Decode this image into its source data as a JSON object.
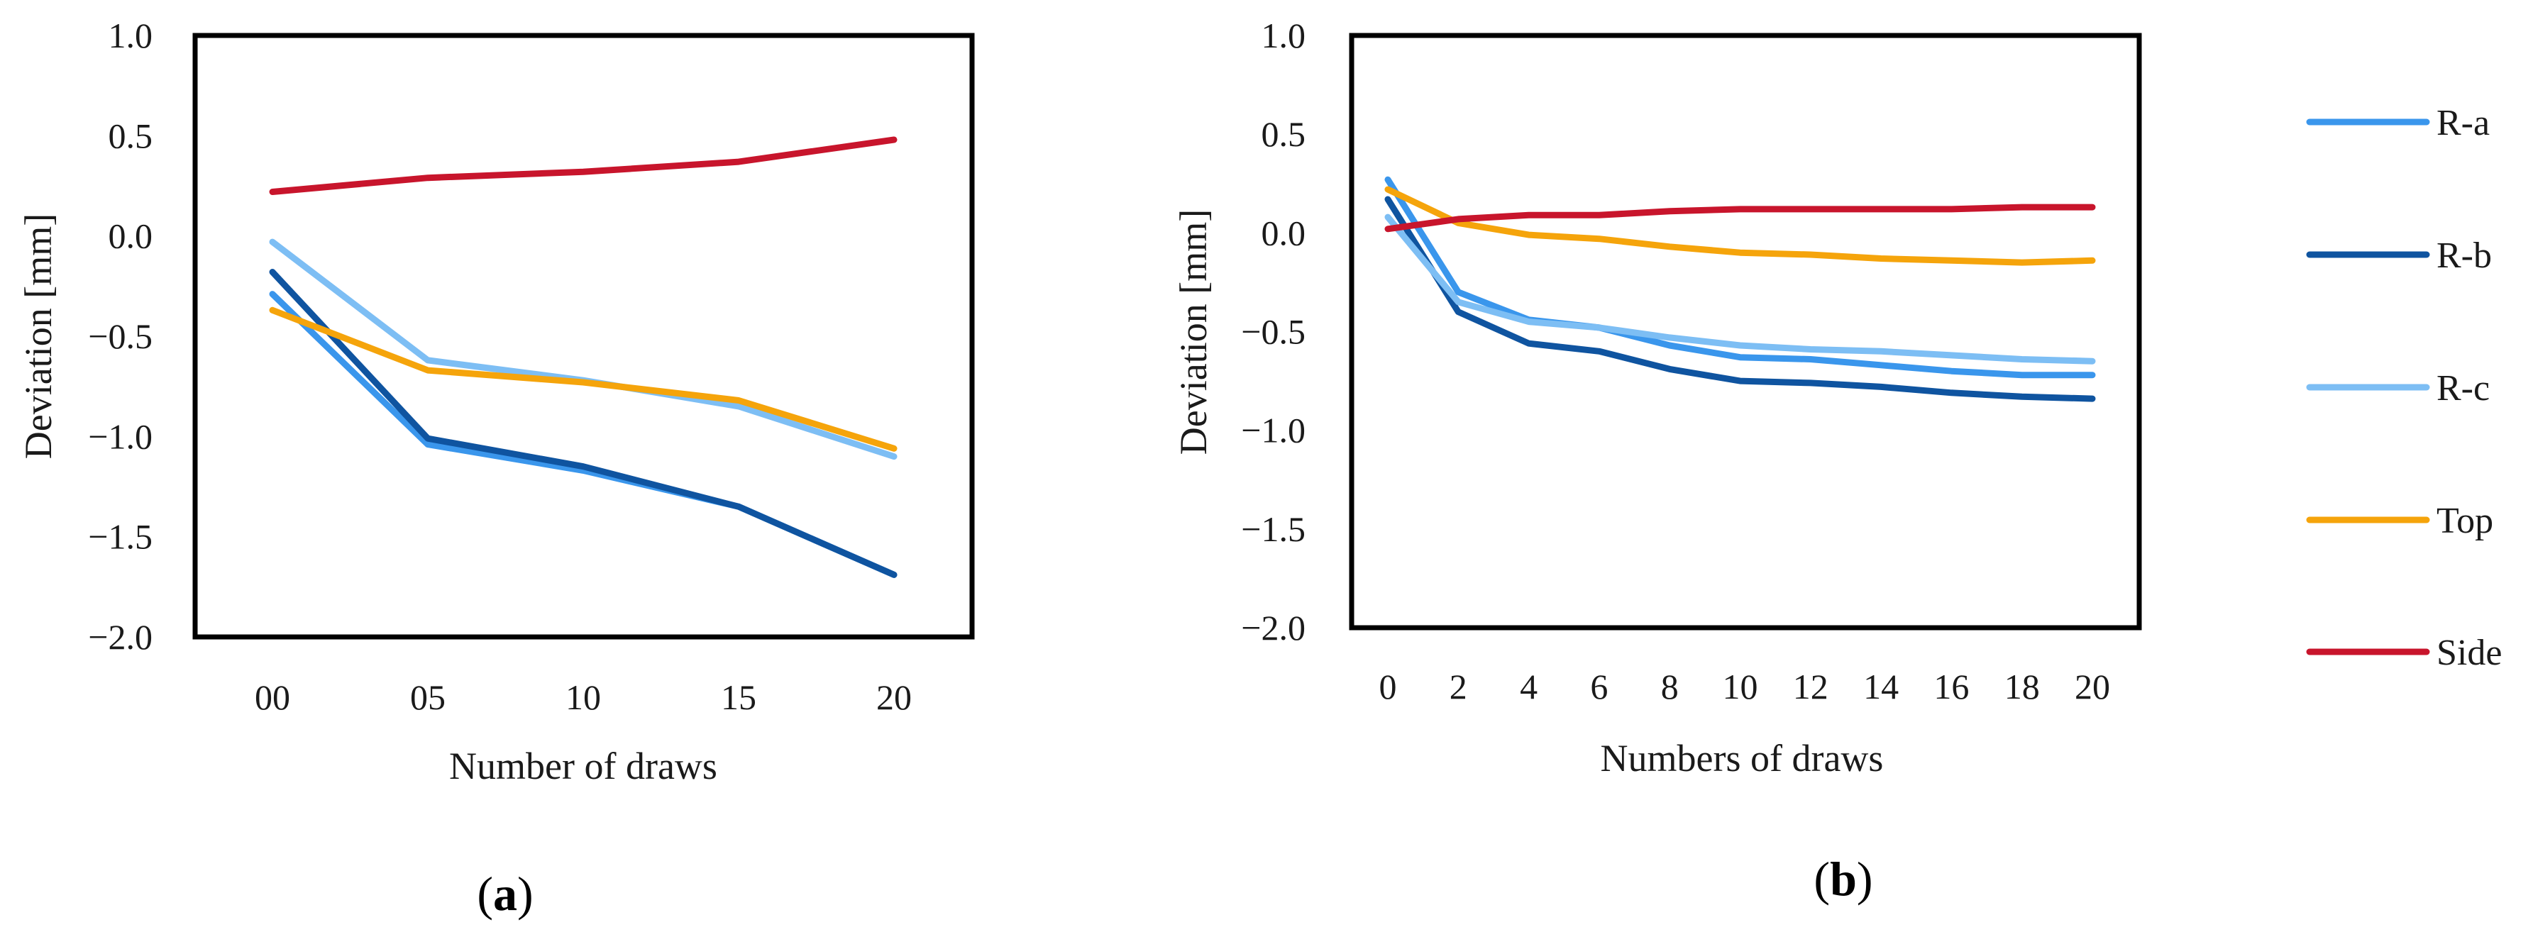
{
  "legend": [
    {
      "name": "R-a",
      "color": "#3a96ec"
    },
    {
      "name": "R-b",
      "color": "#0f54a0"
    },
    {
      "name": "R-c",
      "color": "#7dbef4"
    },
    {
      "name": "Top",
      "color": "#f5a40b"
    },
    {
      "name": "Side",
      "color": "#c8152c"
    }
  ],
  "chart_data": [
    {
      "type": "line",
      "panel_label": "a",
      "xlabel": "Number of draws",
      "ylabel": "Deviation [mm]",
      "categories": [
        "00",
        "05",
        "10",
        "15",
        "20"
      ],
      "ylim": [
        -2.0,
        1.0
      ],
      "yticks": [
        "1.0",
        "0.5",
        "0.0",
        "−0.5",
        "−1.0",
        "−1.5",
        "−2.0"
      ],
      "series": [
        {
          "name": "R-a",
          "color": "#3a96ec",
          "values": [
            -0.29,
            -1.04,
            -1.17,
            -1.35,
            -1.69
          ]
        },
        {
          "name": "R-b",
          "color": "#0f54a0",
          "values": [
            -0.18,
            -1.01,
            -1.15,
            -1.35,
            -1.69
          ]
        },
        {
          "name": "R-c",
          "color": "#7dbef4",
          "values": [
            -0.03,
            -0.62,
            -0.72,
            -0.85,
            -1.1
          ]
        },
        {
          "name": "Top",
          "color": "#f5a40b",
          "values": [
            -0.37,
            -0.67,
            -0.73,
            -0.82,
            -1.06
          ]
        },
        {
          "name": "Side",
          "color": "#c8152c",
          "values": [
            0.22,
            0.29,
            0.32,
            0.37,
            0.48
          ]
        }
      ]
    },
    {
      "type": "line",
      "panel_label": "b",
      "xlabel": "Numbers of draws",
      "ylabel": "Deviation [mm]",
      "categories": [
        "0",
        "2",
        "4",
        "6",
        "8",
        "10",
        "12",
        "14",
        "16",
        "18",
        "20"
      ],
      "ylim": [
        -2.0,
        1.0
      ],
      "yticks": [
        "1.0",
        "0.5",
        "0.0",
        "−0.5",
        "−1.0",
        "−1.5",
        "−2.0"
      ],
      "series": [
        {
          "name": "R-a",
          "color": "#3a96ec",
          "values": [
            0.27,
            -0.3,
            -0.44,
            -0.48,
            -0.57,
            -0.63,
            -0.64,
            -0.67,
            -0.7,
            -0.72,
            -0.72
          ]
        },
        {
          "name": "R-b",
          "color": "#0f54a0",
          "values": [
            0.17,
            -0.4,
            -0.56,
            -0.6,
            -0.69,
            -0.75,
            -0.76,
            -0.78,
            -0.81,
            -0.83,
            -0.84
          ]
        },
        {
          "name": "R-c",
          "color": "#7dbef4",
          "values": [
            0.08,
            -0.35,
            -0.45,
            -0.48,
            -0.53,
            -0.57,
            -0.59,
            -0.6,
            -0.62,
            -0.64,
            -0.65
          ]
        },
        {
          "name": "Top",
          "color": "#f5a40b",
          "values": [
            0.22,
            0.05,
            -0.01,
            -0.03,
            -0.07,
            -0.1,
            -0.11,
            -0.13,
            -0.14,
            -0.15,
            -0.14
          ]
        },
        {
          "name": "Side",
          "color": "#c8152c",
          "values": [
            0.02,
            0.07,
            0.09,
            0.09,
            0.11,
            0.12,
            0.12,
            0.12,
            0.12,
            0.13,
            0.13
          ]
        }
      ]
    }
  ]
}
